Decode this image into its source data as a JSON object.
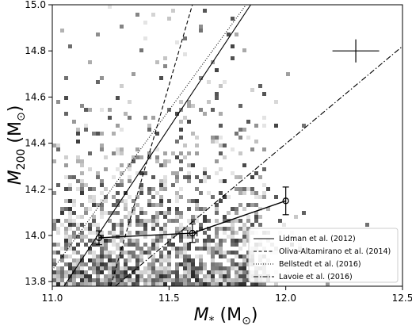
{
  "chart_data": {
    "type": "scatter",
    "xlim": [
      11.0,
      12.5
    ],
    "ylim": [
      13.78,
      15.0
    ],
    "xticks": [
      "11.0",
      "11.5",
      "12.0",
      "12.5"
    ],
    "xtick_values": [
      11.0,
      11.5,
      12.0,
      12.5
    ],
    "yticks": [
      "13.8",
      "14.0",
      "14.2",
      "14.4",
      "14.6",
      "14.8",
      "15.0"
    ],
    "ytick_values": [
      13.8,
      14.0,
      14.2,
      14.4,
      14.6,
      14.8,
      15.0
    ],
    "xlabel": {
      "main": "M",
      "sub": "*",
      "unit_open": " (M",
      "unit_sub": "⊙",
      "unit_close": ")"
    },
    "ylabel": {
      "main": "M",
      "sub": "200",
      "unit_open": " (M",
      "unit_sub": "⊙",
      "unit_close": ")"
    },
    "grid": false,
    "legend_position": "lower-right",
    "background_density": "grayscale 2D histogram of individual clusters, concentrated at M* 11.0–11.8 and M200 13.8–14.3",
    "binned_points": {
      "color": "#000000",
      "marker": "open-circle",
      "x": [
        11.2,
        11.6,
        12.0
      ],
      "y": [
        13.99,
        14.01,
        14.15
      ],
      "yerr": [
        0.03,
        0.04,
        0.06
      ],
      "xerr": [
        0.0,
        0.02,
        0.0
      ]
    },
    "typical_error": {
      "x": 12.3,
      "y": 14.8,
      "xerr": 0.1,
      "yerr": 0.05
    },
    "relations": [
      {
        "name": "Lidman et al. (2012)",
        "style": "solid",
        "x": [
          11.05,
          11.85
        ],
        "y": [
          13.78,
          15.0
        ]
      },
      {
        "name": "Oliva-Altamirano et al. (2014)",
        "style": "dashed",
        "x": [
          11.25,
          11.6
        ],
        "y": [
          13.78,
          15.0
        ]
      },
      {
        "name": "Bellstedt et al. (2016)",
        "style": "dotted",
        "x": [
          11.0,
          11.83
        ],
        "y": [
          13.85,
          15.0
        ]
      },
      {
        "name": "Lavoie et al. (2016)",
        "style": "dashdot",
        "x": [
          11.27,
          12.5
        ],
        "y": [
          13.78,
          14.82
        ]
      }
    ]
  }
}
